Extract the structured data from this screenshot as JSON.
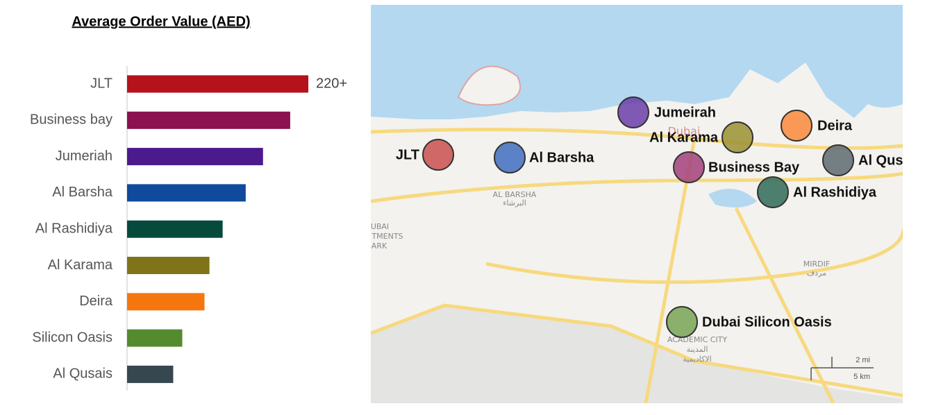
{
  "chart_data": {
    "type": "bar",
    "orientation": "horizontal",
    "title": "Average Order Value (AED)",
    "categories": [
      "JLT",
      "Business bay",
      "Jumeriah",
      "Al Barsha",
      "Al Rashidiya",
      "Al Karama",
      "Deira",
      "Silicon Oasis",
      "Al Qusais"
    ],
    "values": [
      220,
      198,
      165,
      144,
      116,
      100,
      94,
      67,
      56
    ],
    "value_labels": [
      "220+",
      null,
      null,
      null,
      null,
      null,
      null,
      null,
      null
    ],
    "colors": [
      "#b5121b",
      "#8b1150",
      "#4b1a8c",
      "#0f4a9c",
      "#064a3c",
      "#7f7518",
      "#f5760f",
      "#538b2e",
      "#37474f"
    ]
  },
  "map": {
    "markers": [
      {
        "label": "JLT",
        "color": "#c9504f"
      },
      {
        "label": "Al Barsha",
        "color": "#3f6fbe"
      },
      {
        "label": "Jumeirah",
        "color": "#6a3ea8"
      },
      {
        "label": "Al Karama",
        "color": "#9a9133"
      },
      {
        "label": "Business Bay",
        "color": "#a2417b"
      },
      {
        "label": "Deira",
        "color": "#f98a3a"
      },
      {
        "label": "Al Qusais",
        "color": "#5e6b70"
      },
      {
        "label": "Al Rashidiya",
        "color": "#2f6b58"
      },
      {
        "label": "Dubai Silicon Oasis",
        "color": "#78a453"
      }
    ],
    "places": [
      "Dubai",
      "AL BARSHA",
      "البرشاء",
      "MIRDIF",
      "مردف",
      "ACADEMIC CITY",
      "المدينة",
      "الاكاديمية",
      "UBAI",
      "TMENTS",
      "ARK"
    ],
    "scale": [
      "2 mi",
      "5 km"
    ]
  }
}
